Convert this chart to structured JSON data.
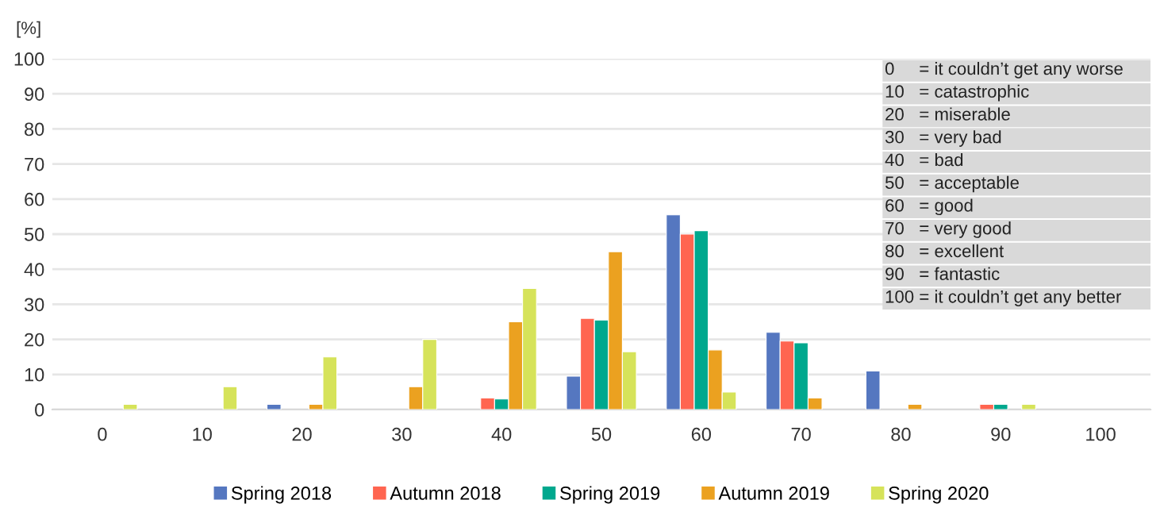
{
  "chart_data": {
    "type": "bar",
    "ylabel": "[%]",
    "categories": [
      "0",
      "10",
      "20",
      "30",
      "40",
      "50",
      "60",
      "70",
      "80",
      "90",
      "100"
    ],
    "series": [
      {
        "name": "Spring 2018",
        "color": "#5577c0",
        "values": [
          null,
          null,
          1.5,
          null,
          null,
          9.5,
          55.5,
          22,
          11,
          null,
          null
        ]
      },
      {
        "name": "Autumn 2018",
        "color": "#ff6550",
        "values": [
          null,
          null,
          null,
          null,
          3.3,
          26,
          50,
          19.5,
          null,
          1.5,
          null
        ]
      },
      {
        "name": "Spring 2019",
        "color": "#00a88e",
        "values": [
          null,
          null,
          null,
          null,
          3,
          25.5,
          51,
          19,
          null,
          1.5,
          null
        ]
      },
      {
        "name": "Autumn 2019",
        "color": "#eba120",
        "values": [
          null,
          null,
          1.5,
          6.5,
          25,
          45,
          17,
          3.3,
          1.5,
          null,
          null
        ]
      },
      {
        "name": "Spring 2020",
        "color": "#d6e35a",
        "values": [
          1.5,
          6.5,
          15,
          20,
          34.5,
          16.5,
          5,
          null,
          null,
          1.5,
          null
        ]
      }
    ],
    "ylim": [
      0,
      100
    ],
    "yticks": [
      0,
      10,
      20,
      30,
      40,
      50,
      60,
      70,
      80,
      90,
      100
    ],
    "grid": "y",
    "legend": "bottom",
    "annotations": [
      "0     = it couldn’t get any worse",
      "10   = catastrophic",
      "20   = miserable",
      "30   = very bad",
      "40   = bad",
      "50   = acceptable",
      "60   = good",
      "70   = very good",
      "80   = excellent",
      "90   = fantastic",
      "100 = it couldn’t get any better"
    ]
  }
}
